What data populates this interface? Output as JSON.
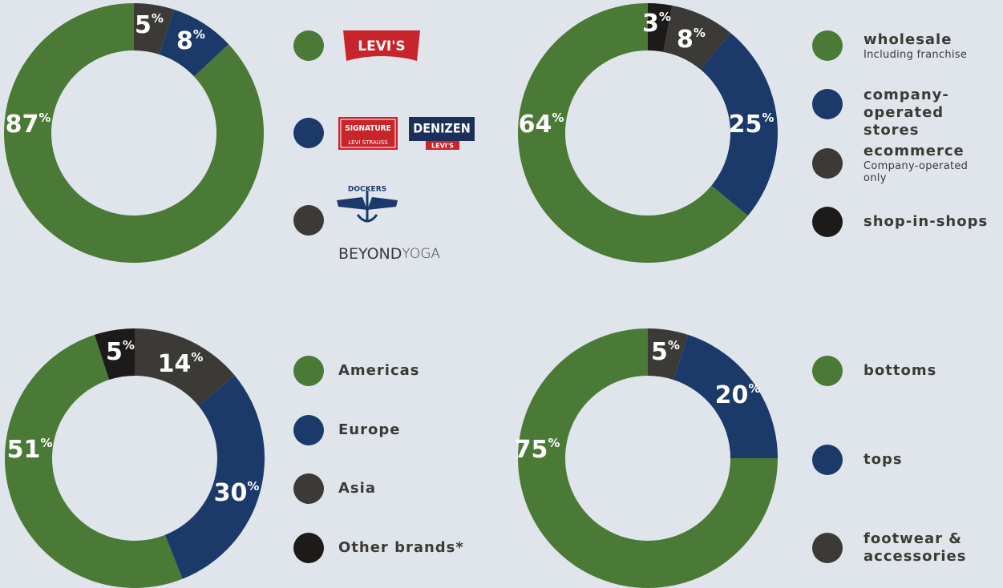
{
  "chart_data": [
    {
      "type": "pie",
      "donut": true,
      "direction": "counterclockwise",
      "start_angle": 0,
      "categories": [
        [
          "LEVI'S"
        ],
        [
          "SIGNATURE",
          "LEVI STRAUSS",
          "DENIZEN",
          "LEVI'S"
        ],
        [
          "DOCKERS",
          "BEYOND",
          "YOGA"
        ]
      ],
      "values": [
        87,
        8,
        5
      ],
      "value_labels": [
        "87%",
        "8%",
        "5%"
      ],
      "colors": [
        "#4b7a36",
        "#1b3a69",
        "#3b3a37"
      ]
    },
    {
      "type": "pie",
      "donut": true,
      "direction": "counterclockwise",
      "start_angle": 0,
      "categories": [
        "wholesale",
        "company-\noperated stores",
        "ecommerce",
        "shop-in-shops"
      ],
      "sublabels": [
        "Including franchise",
        null,
        "Company-operated\nonly",
        null
      ],
      "values": [
        64,
        25,
        8,
        3
      ],
      "value_labels": [
        "64%",
        "25%",
        "8%",
        "3%"
      ],
      "colors": [
        "#4b7a36",
        "#1b3a69",
        "#3b3a37",
        "#1d1a1a"
      ]
    },
    {
      "type": "pie",
      "donut": true,
      "direction": "counterclockwise",
      "start_angle": -18,
      "categories": [
        "Americas",
        "Europe",
        "Asia",
        "Other brands*"
      ],
      "values": [
        51,
        30,
        14,
        5
      ],
      "value_labels": [
        "51%",
        "30%",
        "14%",
        "5%"
      ],
      "colors": [
        "#4b7a36",
        "#1b3a69",
        "#3b3a37",
        "#1d1a1a"
      ]
    },
    {
      "type": "pie",
      "donut": true,
      "direction": "counterclockwise",
      "start_angle": 0,
      "categories": [
        "bottoms",
        "tops",
        "footwear &\naccessories"
      ],
      "values": [
        75,
        20,
        5
      ],
      "value_labels": [
        "75%",
        "20%",
        "5%"
      ],
      "colors": [
        "#4b7a36",
        "#1b3a69",
        "#3b3a37"
      ]
    }
  ]
}
